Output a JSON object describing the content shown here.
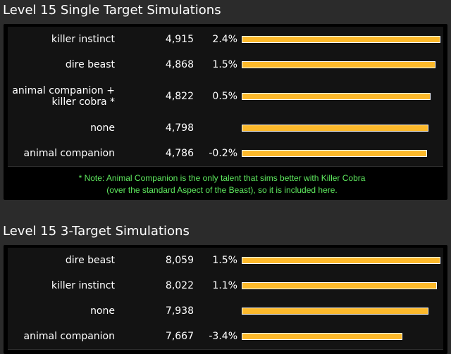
{
  "chart_data": [
    {
      "type": "bar",
      "orientation": "horizontal",
      "title": "Level 15 Single Target Simulations",
      "categories": [
        "killer instinct",
        "dire beast",
        "animal companion + killer cobra *",
        "none",
        "animal companion"
      ],
      "category_lines": [
        [
          "killer instinct"
        ],
        [
          "dire beast"
        ],
        [
          "animal companion +",
          "killer cobra *"
        ],
        [
          "none"
        ],
        [
          "animal companion"
        ]
      ],
      "values": [
        4915,
        4868,
        4822,
        4798,
        4786
      ],
      "value_labels": [
        "4,915",
        "4,868",
        "4,822",
        "4,798",
        "4,786"
      ],
      "percent_labels": [
        "2.4%",
        "1.5%",
        "0.5%",
        "",
        "-0.2%"
      ],
      "bar_color": "#fcb92b",
      "note": [
        "* Note: Animal Companion is the only talent that sims better with Killer Cobra",
        "(over the standard Aspect of the Beast), so it is included here."
      ]
    },
    {
      "type": "bar",
      "orientation": "horizontal",
      "title": "Level 15 3-Target Simulations",
      "categories": [
        "dire beast",
        "killer instinct",
        "none",
        "animal companion"
      ],
      "category_lines": [
        [
          "dire beast"
        ],
        [
          "killer instinct"
        ],
        [
          "none"
        ],
        [
          "animal companion"
        ]
      ],
      "values": [
        8059,
        8022,
        7938,
        7667
      ],
      "value_labels": [
        "8,059",
        "8,022",
        "7,938",
        "7,667"
      ],
      "percent_labels": [
        "1.5%",
        "1.1%",
        "",
        "-3.4%"
      ],
      "bar_color": "#fcb92b"
    }
  ]
}
